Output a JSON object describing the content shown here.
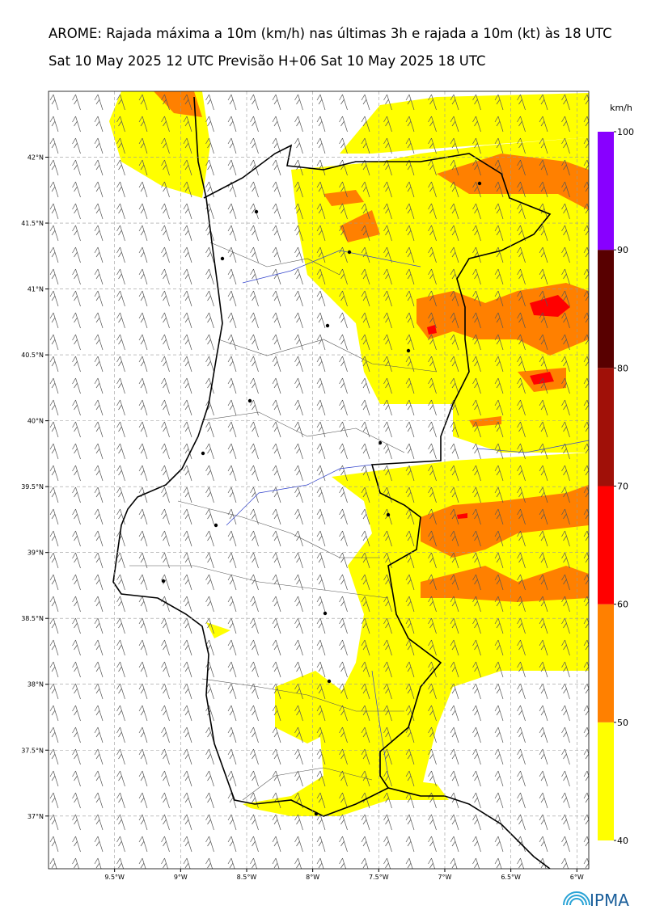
{
  "header": {
    "title": "AROME: Rajada máxima a 10m (km/h) nas últimas 3h e rajada a 10m (kt) às 18 UTC",
    "subtitle": "Sat 10 May 2025 12 UTC Previsão H+06 Sat 10 May 2025 18 UTC"
  },
  "map": {
    "lon_lim": [
      -10.0,
      -5.91
    ],
    "lat_lim": [
      36.6,
      42.5
    ],
    "grid": true,
    "lon_ticks": [
      {
        "value": -9.5,
        "label": "9.5°W"
      },
      {
        "value": -9,
        "label": "9°W"
      },
      {
        "value": -8.5,
        "label": "8.5°W"
      },
      {
        "value": -8,
        "label": "8°W"
      },
      {
        "value": -7.5,
        "label": "7.5°W"
      },
      {
        "value": -7,
        "label": "7°W"
      },
      {
        "value": -6.5,
        "label": "6.5°W"
      },
      {
        "value": -6,
        "label": "6°W"
      }
    ],
    "lat_ticks": [
      {
        "value": 42,
        "label": "42°N"
      },
      {
        "value": 41.5,
        "label": "41.5°N"
      },
      {
        "value": 41,
        "label": "41°N"
      },
      {
        "value": 40.5,
        "label": "40.5°N"
      },
      {
        "value": 40,
        "label": "40°N"
      },
      {
        "value": 39.5,
        "label": "39.5°N"
      },
      {
        "value": 39,
        "label": "39°N"
      },
      {
        "value": 38.5,
        "label": "38.5°N"
      },
      {
        "value": 38,
        "label": "38°N"
      },
      {
        "value": 37.5,
        "label": "37.5°N"
      },
      {
        "value": 37,
        "label": "37°N"
      }
    ]
  },
  "colorbar": {
    "unit": "km/h",
    "ticks": [
      40,
      50,
      60,
      70,
      80,
      90,
      100
    ],
    "colors": [
      "#ffff00",
      "#ff8000",
      "#ff0000",
      "#a01008",
      "#580000",
      "#8800ff"
    ]
  },
  "logo": {
    "text": "IPMA"
  }
}
